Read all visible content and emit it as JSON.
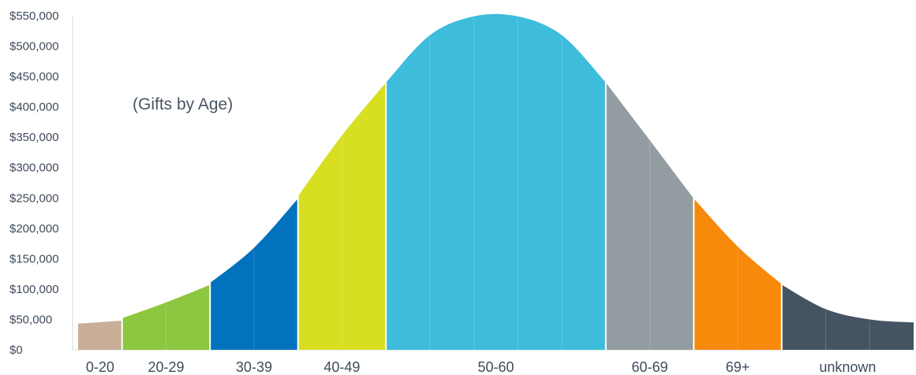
{
  "chart_data": {
    "type": "area",
    "annotation": "(Gifts by Age)",
    "ylim": [
      0,
      550000
    ],
    "y_ticks": [
      "$0",
      "$50,000",
      "$100,000",
      "$150,000",
      "$200,000",
      "$250,000",
      "$300,000",
      "$350,000",
      "$400,000",
      "$450,000",
      "$500,000",
      "$550,000"
    ],
    "y_tick_values": [
      0,
      50000,
      100000,
      150000,
      200000,
      250000,
      300000,
      350000,
      400000,
      450000,
      500000,
      550000
    ],
    "segments": [
      {
        "label": "0-20",
        "color": "#c8ae96",
        "values": [
          43000,
          48000
        ]
      },
      {
        "label": "20-29",
        "color": "#8dc63f",
        "values": [
          52000,
          78000,
          107000
        ]
      },
      {
        "label": "30-39",
        "color": "#0172bd",
        "values": [
          110000,
          168000,
          249000
        ]
      },
      {
        "label": "40-49",
        "color": "#d8df21",
        "values": [
          253000,
          353000,
          440000
        ]
      },
      {
        "label": "50-60",
        "color": "#3dbcdc",
        "values": [
          440000,
          518000,
          549000,
          549000,
          518000,
          440000
        ]
      },
      {
        "label": "60-69",
        "color": "#939da1",
        "values": [
          440000,
          345000,
          249000
        ]
      },
      {
        "label": "69+",
        "color": "#f7890b",
        "values": [
          249000,
          170000,
          108000
        ]
      },
      {
        "label": "unknown",
        "color": "#455463",
        "values": [
          107000,
          67000,
          50000,
          45000
        ]
      }
    ]
  }
}
